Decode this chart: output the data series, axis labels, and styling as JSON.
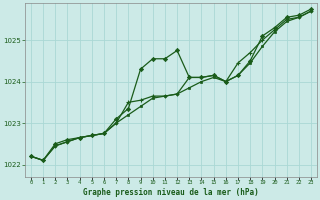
{
  "title": "Graphe pression niveau de la mer (hPa)",
  "background_color": "#cceae7",
  "grid_color": "#aad8d4",
  "line_color": "#1a5c1a",
  "xlim": [
    -0.5,
    23.5
  ],
  "ylim": [
    1021.7,
    1025.9
  ],
  "yticks": [
    1022,
    1023,
    1024,
    1025
  ],
  "x_labels": [
    "0",
    "1",
    "2",
    "3",
    "4",
    "5",
    "6",
    "7",
    "8",
    "9",
    "10",
    "11",
    "12",
    "13",
    "14",
    "15",
    "16",
    "17",
    "18",
    "19",
    "20",
    "21",
    "22",
    "23"
  ],
  "series1": [
    1022.2,
    1022.1,
    1022.5,
    1022.6,
    1022.65,
    1022.7,
    1022.75,
    1023.1,
    1023.35,
    1024.3,
    1024.55,
    1024.55,
    1024.75,
    1024.1,
    1024.1,
    1024.15,
    1024.0,
    1024.15,
    1024.5,
    1025.1,
    1025.3,
    1025.55,
    1025.6,
    1025.75
  ],
  "series2": [
    1022.2,
    1022.1,
    1022.45,
    1022.55,
    1022.65,
    1022.7,
    1022.75,
    1023.0,
    1023.2,
    1023.4,
    1023.6,
    1023.65,
    1023.7,
    1023.85,
    1024.0,
    1024.1,
    1024.0,
    1024.15,
    1024.45,
    1024.85,
    1025.2,
    1025.45,
    1025.55,
    1025.7
  ],
  "series3": [
    1022.2,
    1022.1,
    1022.45,
    1022.55,
    1022.65,
    1022.7,
    1022.75,
    1023.0,
    1023.5,
    1023.55,
    1023.65,
    1023.65,
    1023.7,
    1024.1,
    1024.1,
    1024.15,
    1024.0,
    1024.45,
    1024.7,
    1025.0,
    1025.25,
    1025.5,
    1025.55,
    1025.7
  ]
}
